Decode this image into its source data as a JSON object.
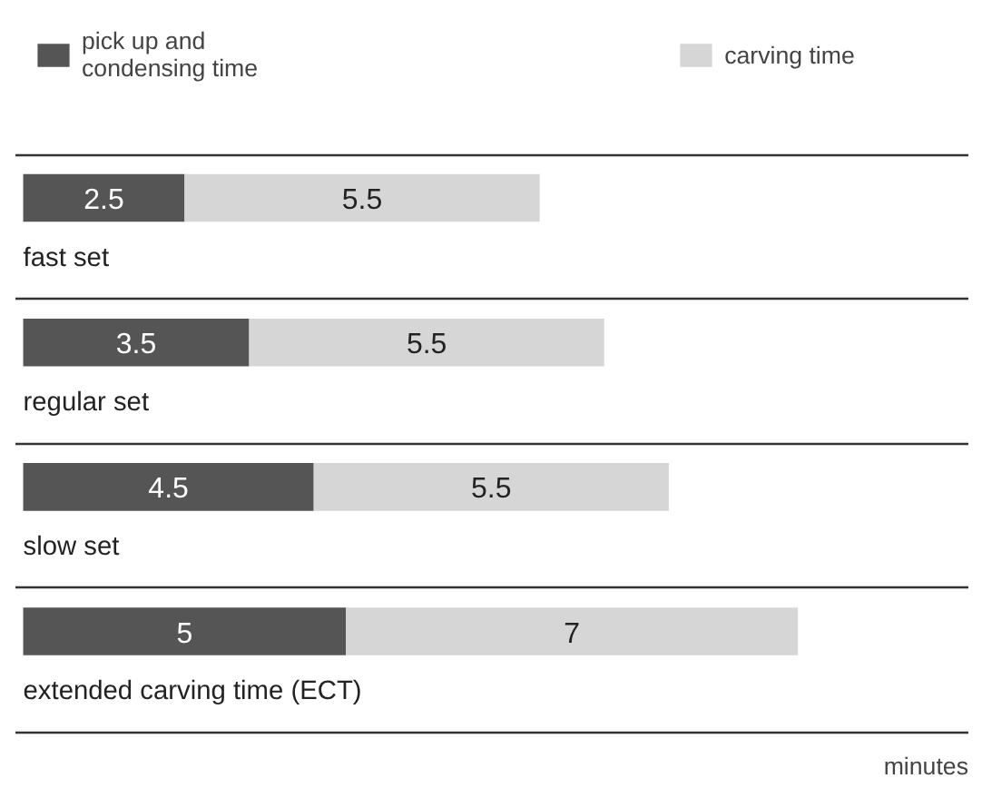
{
  "chart_data": {
    "type": "bar",
    "orientation": "horizontal",
    "stacked": true,
    "data_labels": true,
    "xlabel": "minutes",
    "legend": "top",
    "grid": "y",
    "categories": [
      "fast set",
      "regular set",
      "slow set",
      "extended carving time (ECT)"
    ],
    "series": [
      {
        "name": "pick up and\ncondensing time",
        "color": "#555555",
        "values": [
          2.5,
          3.5,
          4.5,
          5
        ]
      },
      {
        "name": "carving time",
        "color": "#d6d6d6",
        "values": [
          5.5,
          5.5,
          5.5,
          7
        ]
      }
    ]
  }
}
